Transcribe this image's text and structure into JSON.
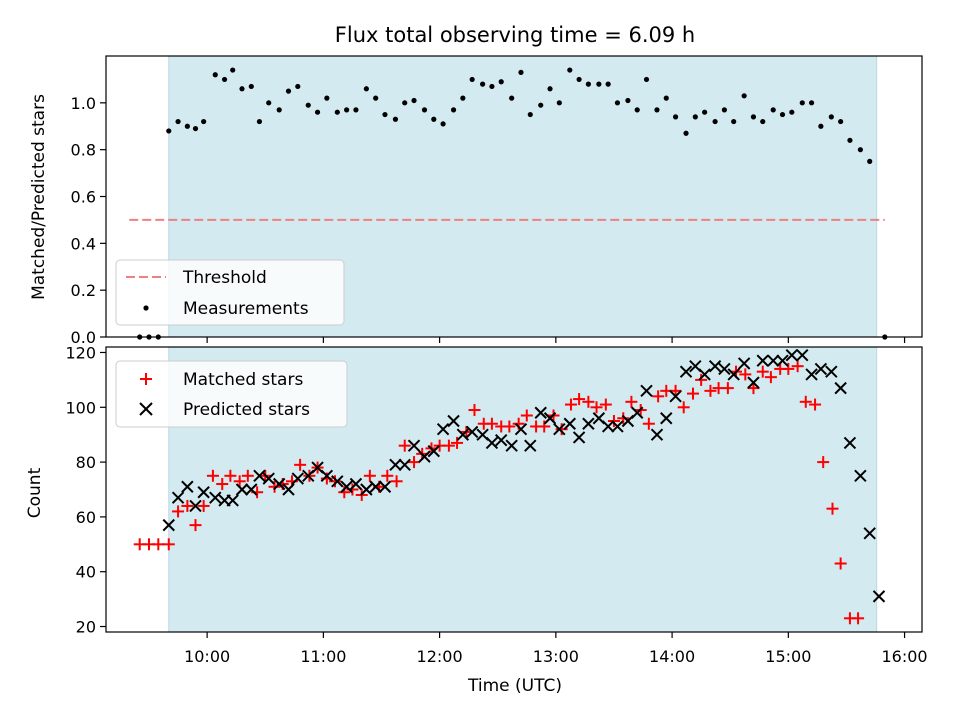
{
  "chart_data": [
    {
      "type": "scatter",
      "panel": "top",
      "title": "Flux total observing time = 6.09 h",
      "xlabel": "",
      "ylabel": "Matched/Predicted stars",
      "xlim": [
        9.13,
        16.15
      ],
      "ylim": [
        0.0,
        1.2
      ],
      "yticks": [
        0.0,
        0.2,
        0.4,
        0.6,
        0.8,
        1.0
      ],
      "ytick_labels": [
        "0.0",
        "0.2",
        "0.4",
        "0.6",
        "0.8",
        "1.0"
      ],
      "xticks": [
        10,
        11,
        12,
        13,
        14,
        15,
        16
      ],
      "shaded_span": [
        9.67,
        15.76
      ],
      "shaded_color": "#d4eaf1",
      "threshold": {
        "name": "Threshold",
        "value": 0.5,
        "x_range": [
          9.33,
          15.83
        ],
        "color": "#f08080"
      },
      "legend": {
        "position": "lower-left",
        "entries": [
          "Threshold",
          "Measurements"
        ]
      },
      "series": [
        {
          "name": "Measurements",
          "color": "#000000",
          "points": [
            [
              9.42,
              0.0
            ],
            [
              9.5,
              0.0
            ],
            [
              9.58,
              0.0
            ],
            [
              9.67,
              0.88
            ],
            [
              9.75,
              0.92
            ],
            [
              9.83,
              0.9
            ],
            [
              9.9,
              0.89
            ],
            [
              9.97,
              0.92
            ],
            [
              10.07,
              1.12
            ],
            [
              10.15,
              1.1
            ],
            [
              10.22,
              1.14
            ],
            [
              10.3,
              1.06
            ],
            [
              10.38,
              1.07
            ],
            [
              10.45,
              0.92
            ],
            [
              10.53,
              1.0
            ],
            [
              10.62,
              0.97
            ],
            [
              10.7,
              1.05
            ],
            [
              10.78,
              1.07
            ],
            [
              10.87,
              0.99
            ],
            [
              10.95,
              0.96
            ],
            [
              11.03,
              1.02
            ],
            [
              11.12,
              0.96
            ],
            [
              11.2,
              0.97
            ],
            [
              11.28,
              0.97
            ],
            [
              11.37,
              1.06
            ],
            [
              11.45,
              1.02
            ],
            [
              11.53,
              0.95
            ],
            [
              11.62,
              0.93
            ],
            [
              11.7,
              1.0
            ],
            [
              11.78,
              1.01
            ],
            [
              11.87,
              0.97
            ],
            [
              11.95,
              0.93
            ],
            [
              12.03,
              0.91
            ],
            [
              12.12,
              0.97
            ],
            [
              12.2,
              1.02
            ],
            [
              12.28,
              1.1
            ],
            [
              12.37,
              1.08
            ],
            [
              12.45,
              1.07
            ],
            [
              12.53,
              1.09
            ],
            [
              12.62,
              1.02
            ],
            [
              12.7,
              1.13
            ],
            [
              12.78,
              0.95
            ],
            [
              12.87,
              0.99
            ],
            [
              12.95,
              1.06
            ],
            [
              13.03,
              1.0
            ],
            [
              13.12,
              1.14
            ],
            [
              13.2,
              1.1
            ],
            [
              13.28,
              1.08
            ],
            [
              13.37,
              1.08
            ],
            [
              13.45,
              1.08
            ],
            [
              13.53,
              1.0
            ],
            [
              13.62,
              1.01
            ],
            [
              13.7,
              0.97
            ],
            [
              13.78,
              1.1
            ],
            [
              13.87,
              0.97
            ],
            [
              13.95,
              1.02
            ],
            [
              14.03,
              0.94
            ],
            [
              14.12,
              0.87
            ],
            [
              14.2,
              0.94
            ],
            [
              14.28,
              0.96
            ],
            [
              14.37,
              0.92
            ],
            [
              14.45,
              0.97
            ],
            [
              14.53,
              0.92
            ],
            [
              14.62,
              1.03
            ],
            [
              14.7,
              0.94
            ],
            [
              14.78,
              0.92
            ],
            [
              14.87,
              0.97
            ],
            [
              14.95,
              0.95
            ],
            [
              15.03,
              0.96
            ],
            [
              15.12,
              1.0
            ],
            [
              15.2,
              1.0
            ],
            [
              15.28,
              0.9
            ],
            [
              15.37,
              0.94
            ],
            [
              15.45,
              0.92
            ],
            [
              15.53,
              0.84
            ],
            [
              15.62,
              0.8
            ],
            [
              15.7,
              0.75
            ],
            [
              15.83,
              0.0
            ]
          ]
        }
      ]
    },
    {
      "type": "scatter",
      "panel": "bottom",
      "title": "",
      "xlabel": "Time (UTC)",
      "ylabel": "Count",
      "xlim": [
        9.13,
        16.15
      ],
      "ylim": [
        18,
        122
      ],
      "yticks": [
        20,
        40,
        60,
        80,
        100,
        120
      ],
      "ytick_labels": [
        "20",
        "40",
        "60",
        "80",
        "100",
        "120"
      ],
      "xticks": [
        10,
        11,
        12,
        13,
        14,
        15,
        16
      ],
      "xtick_labels": [
        "10:00",
        "11:00",
        "12:00",
        "13:00",
        "14:00",
        "15:00",
        "16:00"
      ],
      "shaded_span": [
        9.67,
        15.76
      ],
      "legend": {
        "position": "upper-left",
        "entries": [
          "Matched stars",
          "Predicted stars"
        ]
      },
      "series": [
        {
          "name": "Matched stars",
          "marker": "plus",
          "color": "#ff0000",
          "points": [
            [
              9.42,
              50
            ],
            [
              9.5,
              50
            ],
            [
              9.58,
              50
            ],
            [
              9.67,
              50
            ],
            [
              9.75,
              62
            ],
            [
              9.83,
              64
            ],
            [
              9.9,
              57
            ],
            [
              9.97,
              64
            ],
            [
              10.05,
              75
            ],
            [
              10.13,
              72
            ],
            [
              10.2,
              75
            ],
            [
              10.28,
              73
            ],
            [
              10.35,
              75
            ],
            [
              10.43,
              69
            ],
            [
              10.5,
              75
            ],
            [
              10.58,
              71
            ],
            [
              10.65,
              72
            ],
            [
              10.73,
              73
            ],
            [
              10.8,
              79
            ],
            [
              10.88,
              75
            ],
            [
              10.95,
              78
            ],
            [
              11.03,
              74
            ],
            [
              11.1,
              73
            ],
            [
              11.18,
              69
            ],
            [
              11.25,
              70
            ],
            [
              11.33,
              68
            ],
            [
              11.4,
              75
            ],
            [
              11.48,
              71
            ],
            [
              11.55,
              75
            ],
            [
              11.63,
              73
            ],
            [
              11.7,
              86
            ],
            [
              11.78,
              80
            ],
            [
              11.85,
              83
            ],
            [
              11.93,
              85
            ],
            [
              12.0,
              86
            ],
            [
              12.08,
              86
            ],
            [
              12.15,
              87
            ],
            [
              12.23,
              91
            ],
            [
              12.3,
              99
            ],
            [
              12.38,
              94
            ],
            [
              12.45,
              94
            ],
            [
              12.53,
              93
            ],
            [
              12.6,
              93
            ],
            [
              12.68,
              94
            ],
            [
              12.75,
              97
            ],
            [
              12.83,
              93
            ],
            [
              12.9,
              93
            ],
            [
              12.98,
              97
            ],
            [
              13.05,
              92
            ],
            [
              13.13,
              101
            ],
            [
              13.2,
              103
            ],
            [
              13.28,
              102
            ],
            [
              13.35,
              100
            ],
            [
              13.43,
              101
            ],
            [
              13.5,
              95
            ],
            [
              13.58,
              96
            ],
            [
              13.65,
              102
            ],
            [
              13.73,
              99
            ],
            [
              13.8,
              94
            ],
            [
              13.88,
              104
            ],
            [
              13.95,
              106
            ],
            [
              14.03,
              106
            ],
            [
              14.1,
              100
            ],
            [
              14.18,
              105
            ],
            [
              14.25,
              110
            ],
            [
              14.33,
              106
            ],
            [
              14.4,
              107
            ],
            [
              14.48,
              107
            ],
            [
              14.55,
              113
            ],
            [
              14.63,
              112
            ],
            [
              14.7,
              107
            ],
            [
              14.78,
              113
            ],
            [
              14.85,
              111
            ],
            [
              14.93,
              114
            ],
            [
              15.0,
              114
            ],
            [
              15.08,
              115
            ],
            [
              15.15,
              102
            ],
            [
              15.23,
              101
            ],
            [
              15.3,
              80
            ],
            [
              15.38,
              63
            ],
            [
              15.45,
              43
            ],
            [
              15.53,
              23
            ],
            [
              15.6,
              23
            ]
          ]
        },
        {
          "name": "Predicted stars",
          "marker": "x",
          "color": "#000000",
          "points": [
            [
              9.67,
              57
            ],
            [
              9.75,
              67
            ],
            [
              9.83,
              71
            ],
            [
              9.9,
              64
            ],
            [
              9.97,
              69
            ],
            [
              10.07,
              67
            ],
            [
              10.15,
              66
            ],
            [
              10.22,
              66
            ],
            [
              10.3,
              70
            ],
            [
              10.38,
              70
            ],
            [
              10.45,
              75
            ],
            [
              10.53,
              74
            ],
            [
              10.62,
              72
            ],
            [
              10.7,
              70
            ],
            [
              10.78,
              74
            ],
            [
              10.87,
              75
            ],
            [
              10.95,
              78
            ],
            [
              11.03,
              75
            ],
            [
              11.12,
              73
            ],
            [
              11.2,
              71
            ],
            [
              11.28,
              72
            ],
            [
              11.37,
              70
            ],
            [
              11.45,
              71
            ],
            [
              11.53,
              71
            ],
            [
              11.62,
              79
            ],
            [
              11.7,
              79
            ],
            [
              11.78,
              86
            ],
            [
              11.87,
              82
            ],
            [
              11.95,
              84
            ],
            [
              12.03,
              92
            ],
            [
              12.12,
              95
            ],
            [
              12.2,
              90
            ],
            [
              12.28,
              91
            ],
            [
              12.37,
              90
            ],
            [
              12.45,
              87
            ],
            [
              12.53,
              88
            ],
            [
              12.62,
              86
            ],
            [
              12.7,
              92
            ],
            [
              12.78,
              86
            ],
            [
              12.87,
              98
            ],
            [
              12.95,
              96
            ],
            [
              13.03,
              92
            ],
            [
              13.12,
              94
            ],
            [
              13.2,
              89
            ],
            [
              13.28,
              94
            ],
            [
              13.37,
              96
            ],
            [
              13.45,
              93
            ],
            [
              13.53,
              93
            ],
            [
              13.62,
              95
            ],
            [
              13.7,
              98
            ],
            [
              13.78,
              106
            ],
            [
              13.87,
              90
            ],
            [
              13.95,
              96
            ],
            [
              14.03,
              104
            ],
            [
              14.12,
              113
            ],
            [
              14.2,
              115
            ],
            [
              14.28,
              112
            ],
            [
              14.37,
              115
            ],
            [
              14.45,
              114
            ],
            [
              14.53,
              112
            ],
            [
              14.62,
              116
            ],
            [
              14.7,
              109
            ],
            [
              14.78,
              117
            ],
            [
              14.87,
              117
            ],
            [
              14.95,
              117
            ],
            [
              15.03,
              119
            ],
            [
              15.12,
              119
            ],
            [
              15.2,
              112
            ],
            [
              15.28,
              114
            ],
            [
              15.37,
              113
            ],
            [
              15.45,
              107
            ],
            [
              15.53,
              87
            ],
            [
              15.62,
              75
            ],
            [
              15.7,
              54
            ],
            [
              15.78,
              31
            ]
          ]
        }
      ]
    }
  ]
}
